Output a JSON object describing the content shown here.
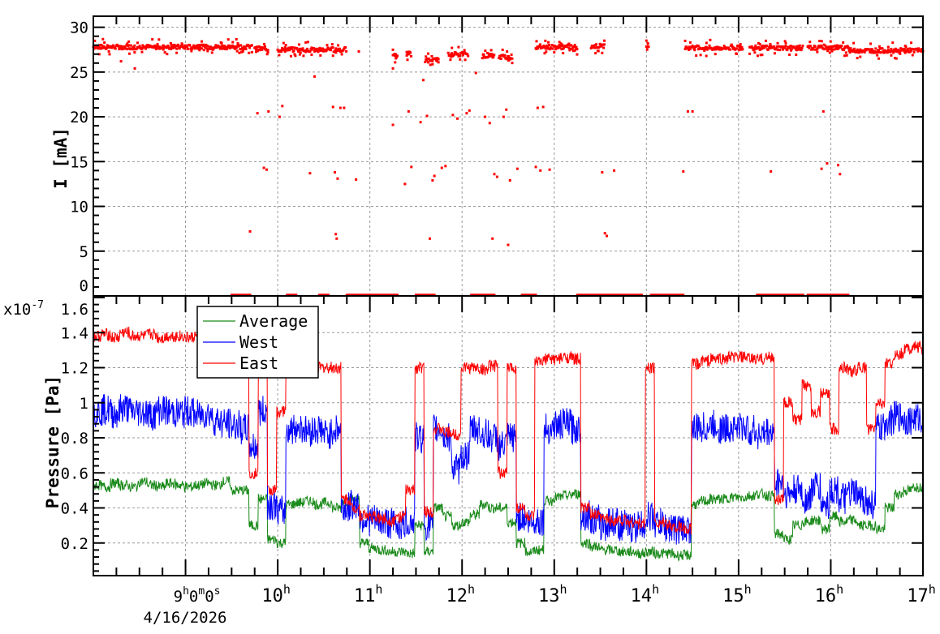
{
  "chart_data": [
    {
      "type": "scatter",
      "title": "",
      "ylabel": "I [mA]",
      "xlabel": "",
      "xlim": [
        8.0,
        17.0
      ],
      "ylim": [
        0,
        30.6
      ],
      "yticks": [
        "0",
        "5",
        "10",
        "15",
        "20",
        "25",
        "30"
      ],
      "grid": true,
      "color": "#ff0000",
      "main_band_segments": [
        [
          8.0,
          9.72,
          27.8
        ],
        [
          9.75,
          9.9,
          27.6
        ],
        [
          10.0,
          10.75,
          27.5
        ],
        [
          11.25,
          11.3,
          26.8
        ],
        [
          11.4,
          11.45,
          27.0
        ],
        [
          11.6,
          11.75,
          26.3
        ],
        [
          11.85,
          12.07,
          27.0
        ],
        [
          12.22,
          12.35,
          26.8
        ],
        [
          12.4,
          12.55,
          26.7
        ],
        [
          12.8,
          13.25,
          27.8
        ],
        [
          13.4,
          13.55,
          27.9
        ],
        [
          14.0,
          14.03,
          28.0
        ],
        [
          14.42,
          15.05,
          27.7
        ],
        [
          15.12,
          15.7,
          27.7
        ],
        [
          15.75,
          16.2,
          27.7
        ],
        [
          16.2,
          17.0,
          27.4
        ]
      ],
      "zero_segments": [
        [
          9.5,
          9.7
        ],
        [
          10.1,
          10.2
        ],
        [
          10.45,
          10.55
        ],
        [
          10.75,
          11.3
        ],
        [
          11.5,
          11.7
        ],
        [
          12.1,
          12.35
        ],
        [
          12.65,
          12.8
        ],
        [
          13.25,
          13.95
        ],
        [
          14.05,
          14.4
        ],
        [
          15.2,
          15.7
        ],
        [
          15.75,
          16.2
        ]
      ],
      "outliers": [
        [
          8.3,
          26.2
        ],
        [
          8.45,
          25.4
        ],
        [
          9.7,
          7.2
        ],
        [
          9.78,
          20.4
        ],
        [
          9.85,
          14.3
        ],
        [
          9.88,
          14.1
        ],
        [
          9.9,
          20.6
        ],
        [
          10.02,
          20.0
        ],
        [
          10.05,
          21.2
        ],
        [
          10.35,
          13.7
        ],
        [
          10.4,
          24.5
        ],
        [
          10.6,
          21.1
        ],
        [
          10.62,
          13.8
        ],
        [
          10.63,
          6.9
        ],
        [
          10.64,
          6.4
        ],
        [
          10.65,
          13.1
        ],
        [
          10.68,
          21.0
        ],
        [
          10.72,
          21.0
        ],
        [
          10.85,
          13.0
        ],
        [
          10.88,
          27.3
        ],
        [
          11.25,
          19.1
        ],
        [
          11.25,
          25.4
        ],
        [
          11.38,
          12.5
        ],
        [
          11.42,
          20.6
        ],
        [
          11.45,
          14.4
        ],
        [
          11.55,
          19.4
        ],
        [
          11.58,
          24.1
        ],
        [
          11.62,
          20.1
        ],
        [
          11.65,
          6.4
        ],
        [
          11.68,
          12.9
        ],
        [
          11.7,
          13.4
        ],
        [
          11.78,
          14.3
        ],
        [
          11.82,
          14.5
        ],
        [
          11.9,
          20.2
        ],
        [
          11.95,
          19.8
        ],
        [
          12.05,
          20.4
        ],
        [
          12.08,
          20.7
        ],
        [
          12.15,
          24.9
        ],
        [
          12.25,
          20.0
        ],
        [
          12.3,
          19.3
        ],
        [
          12.33,
          6.4
        ],
        [
          12.35,
          13.6
        ],
        [
          12.38,
          13.3
        ],
        [
          12.45,
          20.0
        ],
        [
          12.48,
          20.8
        ],
        [
          12.5,
          5.7
        ],
        [
          12.52,
          12.9
        ],
        [
          12.6,
          14.2
        ],
        [
          12.8,
          14.4
        ],
        [
          12.82,
          21.0
        ],
        [
          12.85,
          14.0
        ],
        [
          12.88,
          21.1
        ],
        [
          12.95,
          14.1
        ],
        [
          13.0,
          27.2
        ],
        [
          13.52,
          13.8
        ],
        [
          13.55,
          7.0
        ],
        [
          13.57,
          6.7
        ],
        [
          13.65,
          14.0
        ],
        [
          14.4,
          13.9
        ],
        [
          14.45,
          20.6
        ],
        [
          14.5,
          20.6
        ],
        [
          14.65,
          26.8
        ],
        [
          15.35,
          13.9
        ],
        [
          15.9,
          14.2
        ],
        [
          15.92,
          20.6
        ],
        [
          15.96,
          14.8
        ],
        [
          16.08,
          14.6
        ],
        [
          16.1,
          13.6
        ]
      ]
    },
    {
      "type": "line",
      "title": "",
      "ylabel": "Pressure [Pa]",
      "xlabel": "",
      "y_multiplier": "x10",
      "y_multiplier_exp": "-7",
      "xlim": [
        8.0,
        17.0
      ],
      "ylim": [
        0.0,
        1.6
      ],
      "yticks": [
        "0.2",
        "0.4",
        "0.6",
        "0.8",
        "1",
        "1.2",
        "1.4",
        "1.6"
      ],
      "grid": true,
      "legend_position": "top-left",
      "x_step_hours": 0.1,
      "x_start": 8.0,
      "series": [
        {
          "name": "Average",
          "color": "#1a8a1a",
          "values": [
            0.53,
            0.52,
            0.54,
            0.53,
            0.52,
            0.55,
            0.53,
            0.52,
            0.54,
            0.53,
            0.52,
            0.53,
            0.54,
            0.53,
            0.55,
            0.5,
            0.5,
            0.3,
            0.45,
            0.22,
            0.2,
            0.42,
            0.43,
            0.44,
            0.42,
            0.43,
            0.4,
            0.44,
            0.45,
            0.2,
            0.17,
            0.16,
            0.15,
            0.15,
            0.14,
            0.3,
            0.15,
            0.4,
            0.35,
            0.3,
            0.32,
            0.36,
            0.42,
            0.4,
            0.4,
            0.32,
            0.2,
            0.15,
            0.16,
            0.44,
            0.46,
            0.47,
            0.48,
            0.2,
            0.18,
            0.16,
            0.16,
            0.15,
            0.15,
            0.14,
            0.15,
            0.14,
            0.14,
            0.13,
            0.13,
            0.42,
            0.44,
            0.45,
            0.45,
            0.46,
            0.46,
            0.47,
            0.48,
            0.47,
            0.25,
            0.22,
            0.3,
            0.32,
            0.33,
            0.28,
            0.35,
            0.32,
            0.33,
            0.3,
            0.3,
            0.28,
            0.4,
            0.48,
            0.5,
            0.52,
            0.5
          ]
        },
        {
          "name": "West",
          "color": "#0000ff",
          "values": [
            0.95,
            0.96,
            0.94,
            0.97,
            0.95,
            0.95,
            0.93,
            0.96,
            0.95,
            0.94,
            0.95,
            0.93,
            0.94,
            0.9,
            0.88,
            0.87,
            0.85,
            0.75,
            0.95,
            0.42,
            0.38,
            0.85,
            0.86,
            0.84,
            0.85,
            0.82,
            0.85,
            0.4,
            0.42,
            0.34,
            0.33,
            0.32,
            0.31,
            0.3,
            0.32,
            0.8,
            0.3,
            0.85,
            0.8,
            0.62,
            0.7,
            0.85,
            0.82,
            0.8,
            0.75,
            0.8,
            0.35,
            0.32,
            0.33,
            0.85,
            0.87,
            0.88,
            0.85,
            0.36,
            0.33,
            0.3,
            0.32,
            0.3,
            0.29,
            0.3,
            0.35,
            0.31,
            0.29,
            0.28,
            0.28,
            0.85,
            0.86,
            0.87,
            0.85,
            0.86,
            0.86,
            0.84,
            0.82,
            0.83,
            0.55,
            0.48,
            0.5,
            0.45,
            0.52,
            0.42,
            0.5,
            0.45,
            0.48,
            0.45,
            0.42,
            0.85,
            0.9,
            0.92,
            0.9,
            0.91,
            0.9
          ]
        },
        {
          "name": "East",
          "color": "#ff0000",
          "values": [
            1.38,
            1.39,
            1.37,
            1.4,
            1.38,
            1.38,
            1.39,
            1.37,
            1.38,
            1.38,
            1.37,
            1.38,
            1.36,
            1.38,
            1.32,
            1.28,
            1.25,
            0.6,
            1.2,
            0.5,
            0.95,
            1.2,
            1.22,
            1.21,
            1.2,
            1.2,
            1.2,
            0.45,
            0.4,
            0.36,
            0.35,
            0.34,
            0.33,
            0.35,
            0.5,
            1.2,
            0.38,
            0.85,
            0.83,
            0.82,
            1.2,
            1.2,
            1.19,
            1.21,
            0.6,
            1.2,
            0.4,
            0.35,
            1.23,
            1.25,
            1.25,
            1.26,
            1.25,
            0.4,
            0.36,
            0.34,
            0.33,
            0.33,
            0.32,
            0.31,
            1.2,
            0.32,
            0.3,
            0.29,
            0.28,
            1.22,
            1.24,
            1.25,
            1.25,
            1.26,
            1.26,
            1.25,
            1.25,
            1.26,
            0.45,
            1.0,
            0.9,
            1.1,
            0.95,
            1.05,
            0.85,
            1.2,
            1.18,
            1.2,
            0.85,
            1.0,
            1.22,
            1.28,
            1.31,
            1.32,
            1.3
          ]
        }
      ]
    }
  ],
  "x_axis": {
    "first_label": {
      "parts": [
        "9",
        "h",
        "0",
        "m",
        "0",
        "s"
      ]
    },
    "date": "4/16/2026",
    "hour_labels": [
      {
        "hour": 10,
        "text": "10",
        "sup": "h"
      },
      {
        "hour": 11,
        "text": "11",
        "sup": "h"
      },
      {
        "hour": 12,
        "text": "12",
        "sup": "h"
      },
      {
        "hour": 13,
        "text": "13",
        "sup": "h"
      },
      {
        "hour": 14,
        "text": "14",
        "sup": "h"
      },
      {
        "hour": 15,
        "text": "15",
        "sup": "h"
      },
      {
        "hour": 16,
        "text": "16",
        "sup": "h"
      },
      {
        "hour": 17,
        "text": "17",
        "sup": "h"
      }
    ]
  }
}
